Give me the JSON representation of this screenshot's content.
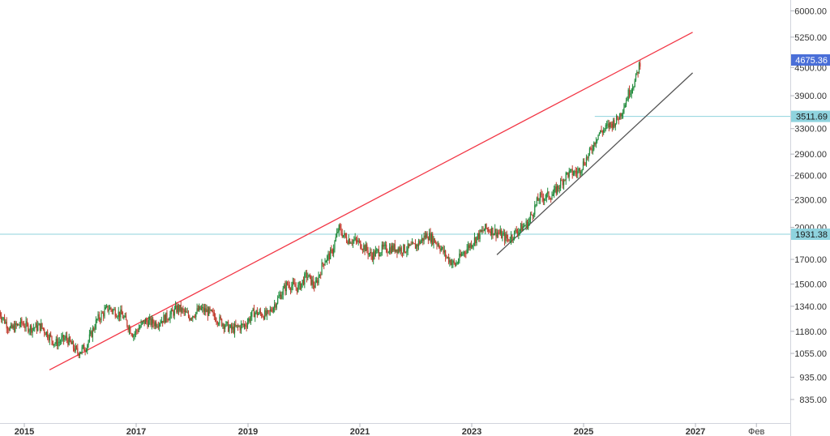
{
  "chart_data": {
    "type": "candlestick",
    "scale": "log",
    "grid": false,
    "ylim": [
      760,
      6800
    ],
    "y_ticks": [
      "6000.00",
      "5250.00",
      "4500.00",
      "3900.00",
      "3300.00",
      "2900.00",
      "2600.00",
      "2300.00",
      "2000.00",
      "1700.00",
      "1500.00",
      "1340.00",
      "1180.00",
      "1055.00",
      "935.00",
      "835.00"
    ],
    "x_ticks": [
      "2015",
      "2017",
      "2019",
      "2021",
      "2023",
      "2025",
      "2027",
      "Фев"
    ],
    "price_labels": [
      {
        "value": "4675.36",
        "color": "#4a6fd8"
      },
      {
        "value": "3511.69",
        "color": "#8fd3de"
      },
      {
        "value": "1931.38",
        "color": "#8fd3de"
      }
    ],
    "horizontal_lines": [
      {
        "value": 3511.69,
        "from_year": 2025.2,
        "color": "#8fd3de"
      },
      {
        "value": 1931.38,
        "from_year": 2014.5,
        "color": "#8fd3de"
      }
    ],
    "trend_lines": [
      {
        "color": "#f23645",
        "from": [
          2015.45,
          970
        ],
        "to": [
          2026.95,
          5380
        ]
      },
      {
        "color": "#555555",
        "from": [
          2023.45,
          1740
        ],
        "to": [
          2026.95,
          4380
        ]
      }
    ],
    "series": {
      "colors": {
        "up": "#1f8a3a",
        "down": "#c0392b"
      },
      "anchors": [
        [
          2014.55,
          1300
        ],
        [
          2014.75,
          1190
        ],
        [
          2014.95,
          1230
        ],
        [
          2015.1,
          1200
        ],
        [
          2015.3,
          1210
        ],
        [
          2015.55,
          1110
        ],
        [
          2015.75,
          1140
        ],
        [
          2015.95,
          1060
        ],
        [
          2016.1,
          1090
        ],
        [
          2016.3,
          1250
        ],
        [
          2016.5,
          1330
        ],
        [
          2016.75,
          1280
        ],
        [
          2016.95,
          1160
        ],
        [
          2017.15,
          1240
        ],
        [
          2017.35,
          1230
        ],
        [
          2017.6,
          1280
        ],
        [
          2017.75,
          1330
        ],
        [
          2017.95,
          1270
        ],
        [
          2018.15,
          1320
        ],
        [
          2018.3,
          1300
        ],
        [
          2018.55,
          1230
        ],
        [
          2018.7,
          1190
        ],
        [
          2018.95,
          1220
        ],
        [
          2019.1,
          1300
        ],
        [
          2019.35,
          1280
        ],
        [
          2019.55,
          1400
        ],
        [
          2019.7,
          1500
        ],
        [
          2019.9,
          1470
        ],
        [
          2020.05,
          1570
        ],
        [
          2020.2,
          1480
        ],
        [
          2020.35,
          1680
        ],
        [
          2020.5,
          1760
        ],
        [
          2020.62,
          1990
        ],
        [
          2020.75,
          1890
        ],
        [
          2020.95,
          1860
        ],
        [
          2021.1,
          1800
        ],
        [
          2021.2,
          1730
        ],
        [
          2021.4,
          1790
        ],
        [
          2021.6,
          1800
        ],
        [
          2021.8,
          1790
        ],
        [
          2022.0,
          1820
        ],
        [
          2022.2,
          1930
        ],
        [
          2022.4,
          1840
        ],
        [
          2022.55,
          1720
        ],
        [
          2022.7,
          1650
        ],
        [
          2022.85,
          1760
        ],
        [
          2023.05,
          1880
        ],
        [
          2023.25,
          1990
        ],
        [
          2023.45,
          1950
        ],
        [
          2023.65,
          1880
        ],
        [
          2023.8,
          1960
        ],
        [
          2024.0,
          2040
        ],
        [
          2024.2,
          2320
        ],
        [
          2024.45,
          2360
        ],
        [
          2024.7,
          2620
        ],
        [
          2024.9,
          2650
        ],
        [
          2025.1,
          2900
        ],
        [
          2025.25,
          3200
        ],
        [
          2025.45,
          3350
        ],
        [
          2025.6,
          3450
        ],
        [
          2025.72,
          3700
        ],
        [
          2025.82,
          4000
        ],
        [
          2025.92,
          4200
        ],
        [
          2026.02,
          4675
        ]
      ]
    }
  }
}
